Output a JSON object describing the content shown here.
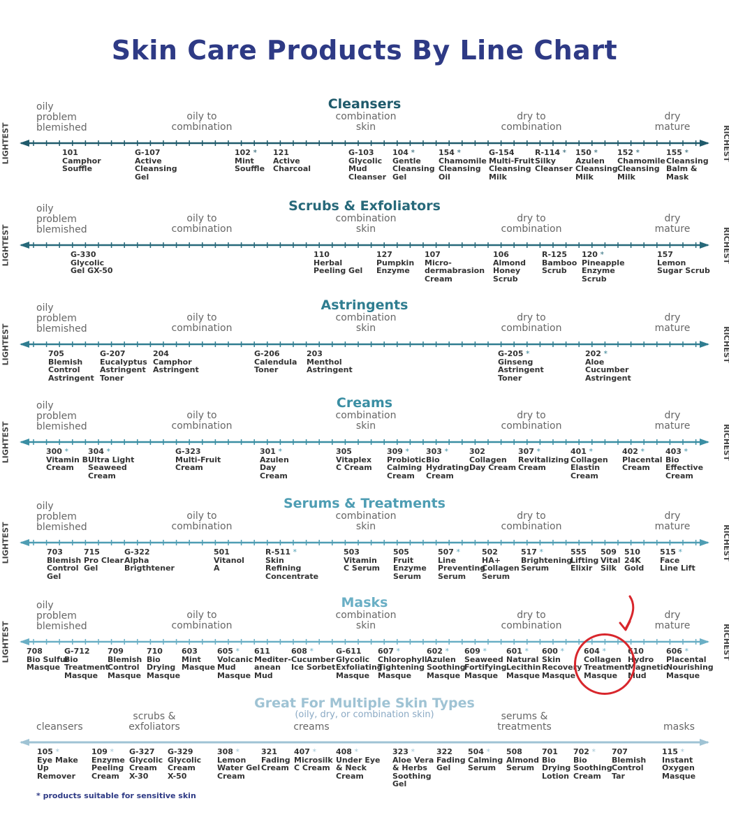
{
  "title": "Skin Care Products By Line Chart",
  "axis_labels": {
    "left": "LIGHTEST",
    "right": "RICHEST"
  },
  "footnote": "* products suitable for sensitive skin",
  "colors": {
    "title": "#2e3a85",
    "highlight_circle": "#d8262c"
  },
  "sections": [
    {
      "id": "cleansers",
      "title": "Cleansers",
      "color": "#1f5a6b",
      "zones": [
        "oily\nproblem\nblemished",
        "oily to\ncombination",
        "combination\nskin",
        "dry to\ncombination",
        "dry\nmature"
      ],
      "products": [
        {
          "code": "101",
          "star": false,
          "name": "Camphor\nSouffle"
        },
        {
          "code": "G-107",
          "star": false,
          "name": "Active\nCleansing\nGel"
        },
        {
          "code": "102",
          "star": true,
          "name": "Mint\nSouffle"
        },
        {
          "code": "121",
          "star": false,
          "name": "Active\nCharcoal"
        },
        {
          "code": "G-103",
          "star": false,
          "name": "Glycolic\nMud\nCleanser"
        },
        {
          "code": "104",
          "star": true,
          "name": "Gentle\nCleansing\nGel"
        },
        {
          "code": "154",
          "star": true,
          "name": "Chamomile\nCleansing\nOil"
        },
        {
          "code": "G-154",
          "star": false,
          "name": "Multi-Fruit\nCleansing\nMilk"
        },
        {
          "code": "R-114",
          "star": true,
          "name": "Silky\nCleanser"
        },
        {
          "code": "150",
          "star": true,
          "name": "Azulen\nCleansing\nMilk"
        },
        {
          "code": "152",
          "star": true,
          "name": "Chamomile\nCleansing\nMilk"
        },
        {
          "code": "155",
          "star": true,
          "name": "Cleansing\nBalm &\nMask"
        }
      ]
    },
    {
      "id": "scrubs",
      "title": "Scrubs & Exfoliators",
      "color": "#27697a",
      "zones": [
        "oily\nproblem\nblemished",
        "oily to\ncombination",
        "combination\nskin",
        "dry to\ncombination",
        "dry\nmature"
      ],
      "products": [
        {
          "code": "G-330",
          "star": false,
          "name": "Glycolic\nGel GX-50"
        },
        {
          "code": "110",
          "star": false,
          "name": "Herbal\nPeeling Gel"
        },
        {
          "code": "127",
          "star": false,
          "name": "Pumpkin\nEnzyme"
        },
        {
          "code": "107",
          "star": false,
          "name": "Micro-\ndermabrasion\nCream"
        },
        {
          "code": "106",
          "star": false,
          "name": "Almond\nHoney\nScrub"
        },
        {
          "code": "R-125",
          "star": false,
          "name": "Bamboo\nScrub"
        },
        {
          "code": "120",
          "star": true,
          "name": "Pineapple\nEnzyme\nScrub"
        },
        {
          "code": "157",
          "star": false,
          "name": "Lemon\nSugar Scrub"
        }
      ]
    },
    {
      "id": "astringents",
      "title": "Astringents",
      "color": "#2f7d90",
      "zones": [
        "oily\nproblem\nblemished",
        "oily to\ncombination",
        "combination\nskin",
        "dry to\ncombination",
        "dry\nmature"
      ],
      "products": [
        {
          "code": "705",
          "star": false,
          "name": "Blemish\nControl\nAstringent"
        },
        {
          "code": "G-207",
          "star": false,
          "name": "Eucalyptus\nAstringent\nToner"
        },
        {
          "code": "204",
          "star": false,
          "name": "Camphor\nAstringent"
        },
        {
          "code": "G-206",
          "star": false,
          "name": "Calendula\nToner"
        },
        {
          "code": "203",
          "star": false,
          "name": "Menthol\nAstringent"
        },
        {
          "code": "G-205",
          "star": true,
          "name": "Ginseng\nAstringent\nToner"
        },
        {
          "code": "202",
          "star": true,
          "name": "Aloe\nCucumber\nAstringent"
        }
      ]
    },
    {
      "id": "creams",
      "title": "Creams",
      "color": "#3a8ea3",
      "zones": [
        "oily\nproblem\nblemished",
        "oily to\ncombination",
        "combination\nskin",
        "dry to\ncombination",
        "dry\nmature"
      ],
      "products": [
        {
          "code": "300",
          "star": true,
          "name": "Vitamin B\nCream"
        },
        {
          "code": "304",
          "star": true,
          "name": "Ultra Light\nSeaweed\nCream"
        },
        {
          "code": "G-323",
          "star": false,
          "name": "Multi-Fruit\nCream"
        },
        {
          "code": "301",
          "star": true,
          "name": "Azulen\nDay\nCream"
        },
        {
          "code": "305",
          "star": false,
          "name": "Vitaplex\nC Cream"
        },
        {
          "code": "309",
          "star": true,
          "name": "Probiotic\nCalming\nCream"
        },
        {
          "code": "303",
          "star": true,
          "name": "Bio\nHydrating\nCream"
        },
        {
          "code": "302",
          "star": false,
          "name": "Collagen\nDay Cream"
        },
        {
          "code": "307",
          "star": true,
          "name": "Revitalizing\nCream"
        },
        {
          "code": "401",
          "star": true,
          "name": "Collagen\nElastin\nCream"
        },
        {
          "code": "402",
          "star": true,
          "name": "Placental\nCream"
        },
        {
          "code": "403",
          "star": true,
          "name": "Bio\nEffective\nCream"
        }
      ]
    },
    {
      "id": "serums",
      "title": "Serums & Treatments",
      "color": "#4e9db3",
      "zones": [
        "oily\nproblem\nblemished",
        "oily to\ncombination",
        "combination\nskin",
        "dry to\ncombination",
        "dry\nmature"
      ],
      "products": [
        {
          "code": "703",
          "star": false,
          "name": "Blemish\nControl\nGel"
        },
        {
          "code": "715",
          "star": false,
          "name": "Pro Clear\nGel"
        },
        {
          "code": "G-322",
          "star": false,
          "name": "Alpha\nBrigthtener"
        },
        {
          "code": "501",
          "star": false,
          "name": "Vitanol\nA"
        },
        {
          "code": "R-511",
          "star": true,
          "name": "Skin\nRefining\nConcentrate"
        },
        {
          "code": "503",
          "star": false,
          "name": "Vitamin\nC Serum"
        },
        {
          "code": "505",
          "star": false,
          "name": "Fruit\nEnzyme\nSerum"
        },
        {
          "code": "507",
          "star": true,
          "name": "Line\nPreventing\nSerum"
        },
        {
          "code": "502",
          "star": false,
          "name": "HA+\nCollagen\nSerum"
        },
        {
          "code": "517",
          "star": true,
          "name": "Brightening\nSerum"
        },
        {
          "code": "555",
          "star": false,
          "name": "Lifting\nElixir"
        },
        {
          "code": "509",
          "star": false,
          "name": "Vital\nSilk"
        },
        {
          "code": "510",
          "star": false,
          "name": "24K\nGold"
        },
        {
          "code": "515",
          "star": true,
          "name": "Face\nLine Lift"
        }
      ]
    },
    {
      "id": "masks",
      "title": "Masks",
      "color": "#6aafc5",
      "zones": [
        "oily\nproblem\nblemished",
        "oily to\ncombination",
        "combination\nskin",
        "dry to\ncombination",
        "dry\nmature"
      ],
      "products": [
        {
          "code": "708",
          "star": false,
          "name": "Bio Sulfur\nMasque"
        },
        {
          "code": "G-712",
          "star": false,
          "name": "Bio\nTreatment\nMasque"
        },
        {
          "code": "709",
          "star": false,
          "name": "Blemish\nControl\nMasque"
        },
        {
          "code": "710",
          "star": false,
          "name": "Bio\nDrying\nMasque"
        },
        {
          "code": "603",
          "star": false,
          "name": "Mint\nMasque"
        },
        {
          "code": "605",
          "star": true,
          "name": "Volcanic\nMud\nMasque"
        },
        {
          "code": "611",
          "star": false,
          "name": "Mediter-\nanean\nMud"
        },
        {
          "code": "608",
          "star": true,
          "name": "Cucumber\nIce Sorbet"
        },
        {
          "code": "G-611",
          "star": false,
          "name": "Glycolic\nExfoliating\nMasque"
        },
        {
          "code": "607",
          "star": true,
          "name": "Chlorophyll\nTightening\nMasque"
        },
        {
          "code": "602",
          "star": true,
          "name": "Azulen\nSoothing\nMasque"
        },
        {
          "code": "609",
          "star": true,
          "name": "Seaweed\nFortifying\nMasque"
        },
        {
          "code": "601",
          "star": true,
          "name": "Natural\nLecithin\nMasque"
        },
        {
          "code": "600",
          "star": true,
          "name": "Skin\nRecovery\nMasque"
        },
        {
          "code": "604",
          "star": true,
          "name": "Collagen\nTreatment\nMasque"
        },
        {
          "code": "610",
          "star": false,
          "name": "Hydro\nMagnetic\nMud"
        },
        {
          "code": "606",
          "star": true,
          "name": "Placental\nNourishing\nMasque"
        }
      ]
    },
    {
      "id": "multiple",
      "title": "Great For Multiple Skin Types",
      "subtitle": "(oily, dry, or combination skin)",
      "color": "#9fc3d4",
      "zones": [
        "cleansers",
        "scrubs &\nexfoliators",
        "creams",
        "serums &\ntreatments",
        "masks"
      ],
      "products": [
        {
          "code": "105",
          "star": true,
          "name": "Eye Make\nUp\nRemover"
        },
        {
          "code": "109",
          "star": true,
          "name": "Enzyme\nPeeling\nCream"
        },
        {
          "code": "G-327",
          "star": false,
          "name": "Glycolic\nCream\nX-30"
        },
        {
          "code": "G-329",
          "star": false,
          "name": "Glycolic\nCream\nX-50"
        },
        {
          "code": "308",
          "star": true,
          "name": "Lemon\nWater Gel\nCream"
        },
        {
          "code": "321",
          "star": false,
          "name": "Fading\nCream"
        },
        {
          "code": "407",
          "star": true,
          "name": "Microsilk\nC Cream"
        },
        {
          "code": "408",
          "star": true,
          "name": "Under Eye\n& Neck\nCream"
        },
        {
          "code": "323",
          "star": true,
          "name": "Aloe Vera\n& Herbs\nSoothing\nGel"
        },
        {
          "code": "322",
          "star": false,
          "name": "Fading\nGel"
        },
        {
          "code": "504",
          "star": true,
          "name": "Calming\nSerum"
        },
        {
          "code": "508",
          "star": false,
          "name": "Almond\nSerum"
        },
        {
          "code": "701",
          "star": false,
          "name": "Bio\nDrying\nLotion"
        },
        {
          "code": "702",
          "star": true,
          "name": "Bio\nSoothing\nCream"
        },
        {
          "code": "707",
          "star": false,
          "name": "Blemish\nControl\nTar"
        },
        {
          "code": "115",
          "star": true,
          "name": "Instant\nOxygen\nMasque"
        }
      ]
    }
  ]
}
